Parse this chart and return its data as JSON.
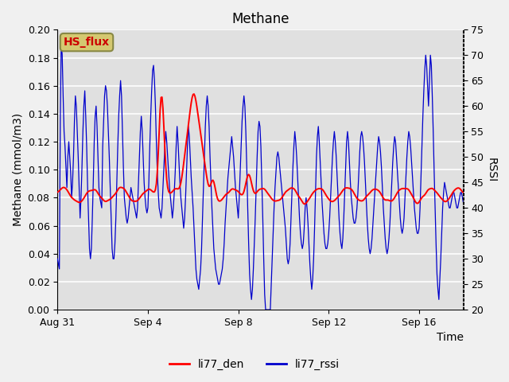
{
  "title": "Methane",
  "ylabel_left": "Methane (mmol/m3)",
  "ylabel_right": "RSSI",
  "xlabel": "Time",
  "ylim_left": [
    0.0,
    0.2
  ],
  "ylim_right": [
    20,
    75
  ],
  "yticks_left": [
    0.0,
    0.02,
    0.04,
    0.06,
    0.08,
    0.1,
    0.12,
    0.14,
    0.16,
    0.18,
    0.2
  ],
  "yticks_right": [
    20,
    25,
    30,
    35,
    40,
    45,
    50,
    55,
    60,
    65,
    70,
    75
  ],
  "xtick_labels": [
    "Aug 31",
    "Sep 4",
    "Sep 8",
    "Sep 12",
    "Sep 16"
  ],
  "xtick_positions": [
    0,
    96,
    192,
    288,
    384
  ],
  "fig_bg_color": "#f0f0f0",
  "plot_bg_color": "#e0e0e0",
  "grid_color": "#d0d0d0",
  "line_red_color": "#ff0000",
  "line_blue_color": "#0000cc",
  "legend_red_label": "li77_den",
  "legend_blue_label": "li77_rssi",
  "hs_flux_label": "HS_flux",
  "hs_flux_bg": "#d4c870",
  "hs_flux_border": "#888844",
  "hs_flux_text": "#cc0000",
  "title_fontsize": 12,
  "axis_fontsize": 10,
  "tick_fontsize": 9,
  "legend_fontsize": 10,
  "total_points": 432
}
